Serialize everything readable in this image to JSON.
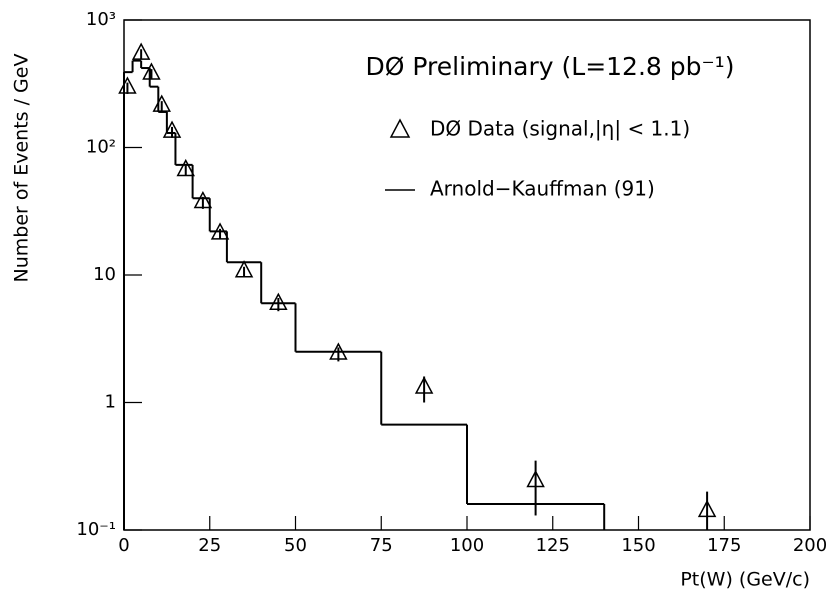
{
  "chart_data": {
    "type": "scatter",
    "title": "DØ Preliminary (L=12.8 pb⁻¹)",
    "x_label": "Pt(W) (GeV/c)",
    "y_label": "Number of Events / GeV",
    "log_y": true,
    "xlim": [
      0,
      200
    ],
    "ylim": [
      0.1,
      1000
    ],
    "xticks": [
      0,
      25,
      50,
      75,
      100,
      125,
      150,
      175,
      200
    ],
    "yticks": [
      {
        "value": 0.1,
        "label": "10⁻¹"
      },
      1,
      10,
      {
        "value": 100,
        "label": "10²"
      },
      {
        "value": 1000,
        "label": "10³"
      }
    ],
    "color": "#000000",
    "series": [
      {
        "name": "DØ Data (signal,|η| < 1.1)",
        "type": "points",
        "x": [
          1,
          5,
          8,
          11,
          14,
          18,
          23,
          28,
          35,
          45,
          62.5,
          87.5,
          120,
          170
        ],
        "values": [
          293,
          540,
          377,
          211,
          132,
          66,
          37,
          21,
          10.6,
          5.9,
          2.4,
          1.3,
          0.24,
          0.14
        ],
        "errors": [
          30,
          50,
          35,
          20,
          13,
          6,
          4,
          2,
          1,
          0.7,
          0.3,
          0.3,
          0.11,
          0.06
        ]
      },
      {
        "name": "Arnold−Kauffman (91)",
        "type": "step",
        "bins": [
          0,
          2.5,
          5,
          7.5,
          10,
          12.5,
          15,
          20,
          25,
          30,
          40,
          50,
          75,
          100,
          140,
          200
        ],
        "values": [
          390,
          480,
          420,
          300,
          190,
          130,
          73,
          40,
          22,
          12.6,
          6,
          2.5,
          0.67,
          0.16,
          null
        ]
      }
    ]
  }
}
